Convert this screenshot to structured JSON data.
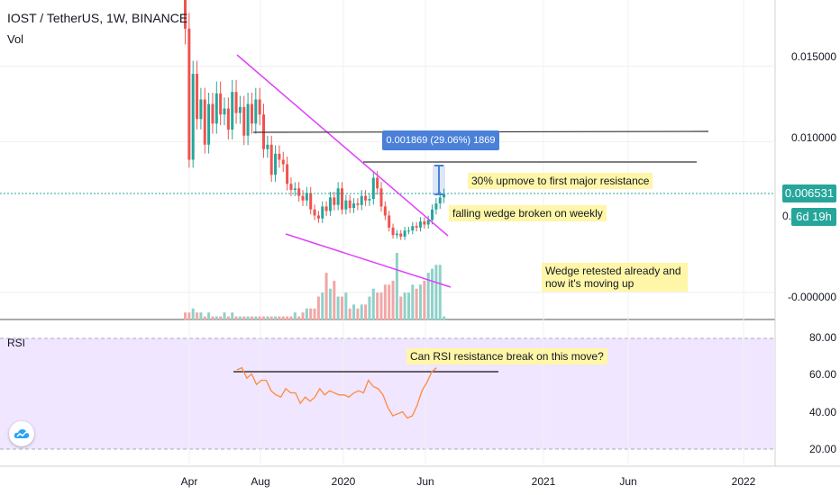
{
  "header": {
    "title": "IOST / TetherUS, 1W, BINANCE",
    "vol_label": "Vol"
  },
  "rsi_panel": {
    "label": "RSI"
  },
  "colors": {
    "up": "#26a69a",
    "down": "#ef5350",
    "wedge": "#e040fb",
    "rsi_line": "#ff8a3d",
    "rsi_band": "#f0e6ff",
    "note_bg": "#fff6a8",
    "measure": "#4a80d8"
  },
  "price_axis": {
    "ticks": [
      "0.015000",
      "0.010000",
      "-0.000000"
    ],
    "current_price": "0.006531",
    "countdown": "6d 19h",
    "partial": "0."
  },
  "rsi_axis": {
    "ticks": [
      "80.00",
      "60.00",
      "40.00",
      "20.00"
    ]
  },
  "time_axis": {
    "labels": [
      "Apr",
      "Aug",
      "2020",
      "Jun",
      "2021",
      "Jun",
      "2022"
    ]
  },
  "annotations": {
    "measure": "0.001869 (29.06%) 1869",
    "note1": "30% upmove to first major resistance",
    "note2": "falling wedge broken on weekly",
    "note3": "Wedge retested already and now it's moving up",
    "note4": "Can RSI resistance break on this move?"
  },
  "chart_data": {
    "type": "candlestick",
    "symbol": "IOST / TetherUS",
    "interval": "1W",
    "exchange": "BINANCE",
    "current_price": 0.006531,
    "price_ylim": [
      -0.0018,
      0.0194
    ],
    "price_ticks": [
      0.015,
      0.01,
      0.0
    ],
    "closes": [
      0.0175,
      0.0088,
      0.0145,
      0.0115,
      0.0128,
      0.0098,
      0.0125,
      0.0112,
      0.0132,
      0.0118,
      0.0122,
      0.0108,
      0.0133,
      0.0119,
      0.0123,
      0.0104,
      0.0125,
      0.0112,
      0.0128,
      0.0118,
      0.0095,
      0.0098,
      0.0078,
      0.0092,
      0.0088,
      0.0085,
      0.0072,
      0.0068,
      0.0069,
      0.0064,
      0.0061,
      0.0066,
      0.0055,
      0.0051,
      0.0049,
      0.0057,
      0.0054,
      0.0063,
      0.0058,
      0.0069,
      0.0055,
      0.0061,
      0.0056,
      0.0059,
      0.0058,
      0.0064,
      0.0061,
      0.0062,
      0.0076,
      0.0069,
      0.0057,
      0.0051,
      0.0043,
      0.0038,
      0.0039,
      0.0037,
      0.0041,
      0.0041,
      0.0044,
      0.0043,
      0.0047,
      0.0045,
      0.0048,
      0.0055,
      0.0059,
      0.0063,
      0.0065
    ],
    "volumes": [
      2,
      2,
      3,
      2,
      2,
      1,
      2,
      1,
      1,
      1,
      2,
      1,
      2,
      1,
      1,
      1,
      1,
      1,
      1,
      1,
      1,
      1,
      1,
      1,
      1,
      1,
      1,
      1,
      2,
      1,
      2,
      3,
      3,
      3,
      6,
      7,
      12,
      8,
      10,
      6,
      6,
      7,
      3,
      4,
      3,
      4,
      4,
      6,
      8,
      7,
      7,
      9,
      9,
      10,
      17,
      6,
      7,
      7,
      9,
      8,
      9,
      10,
      12,
      13,
      14,
      14,
      1
    ],
    "rsi": [
      61,
      62,
      57,
      59,
      54,
      56,
      56,
      51,
      49,
      48,
      52,
      50,
      50,
      45,
      48,
      46,
      48,
      52,
      49,
      51,
      50,
      49,
      49,
      48,
      50,
      51,
      50,
      56,
      53,
      52,
      49,
      43,
      39,
      40,
      41,
      38,
      39,
      44,
      51,
      55,
      60,
      62
    ],
    "rsi_ylim": [
      15,
      85
    ],
    "rsi_ticks": [
      80,
      60,
      40,
      20
    ],
    "rsi_resistance": 61,
    "measure": {
      "delta": 0.001869,
      "percent": 29.06,
      "ticks": 1869
    }
  }
}
